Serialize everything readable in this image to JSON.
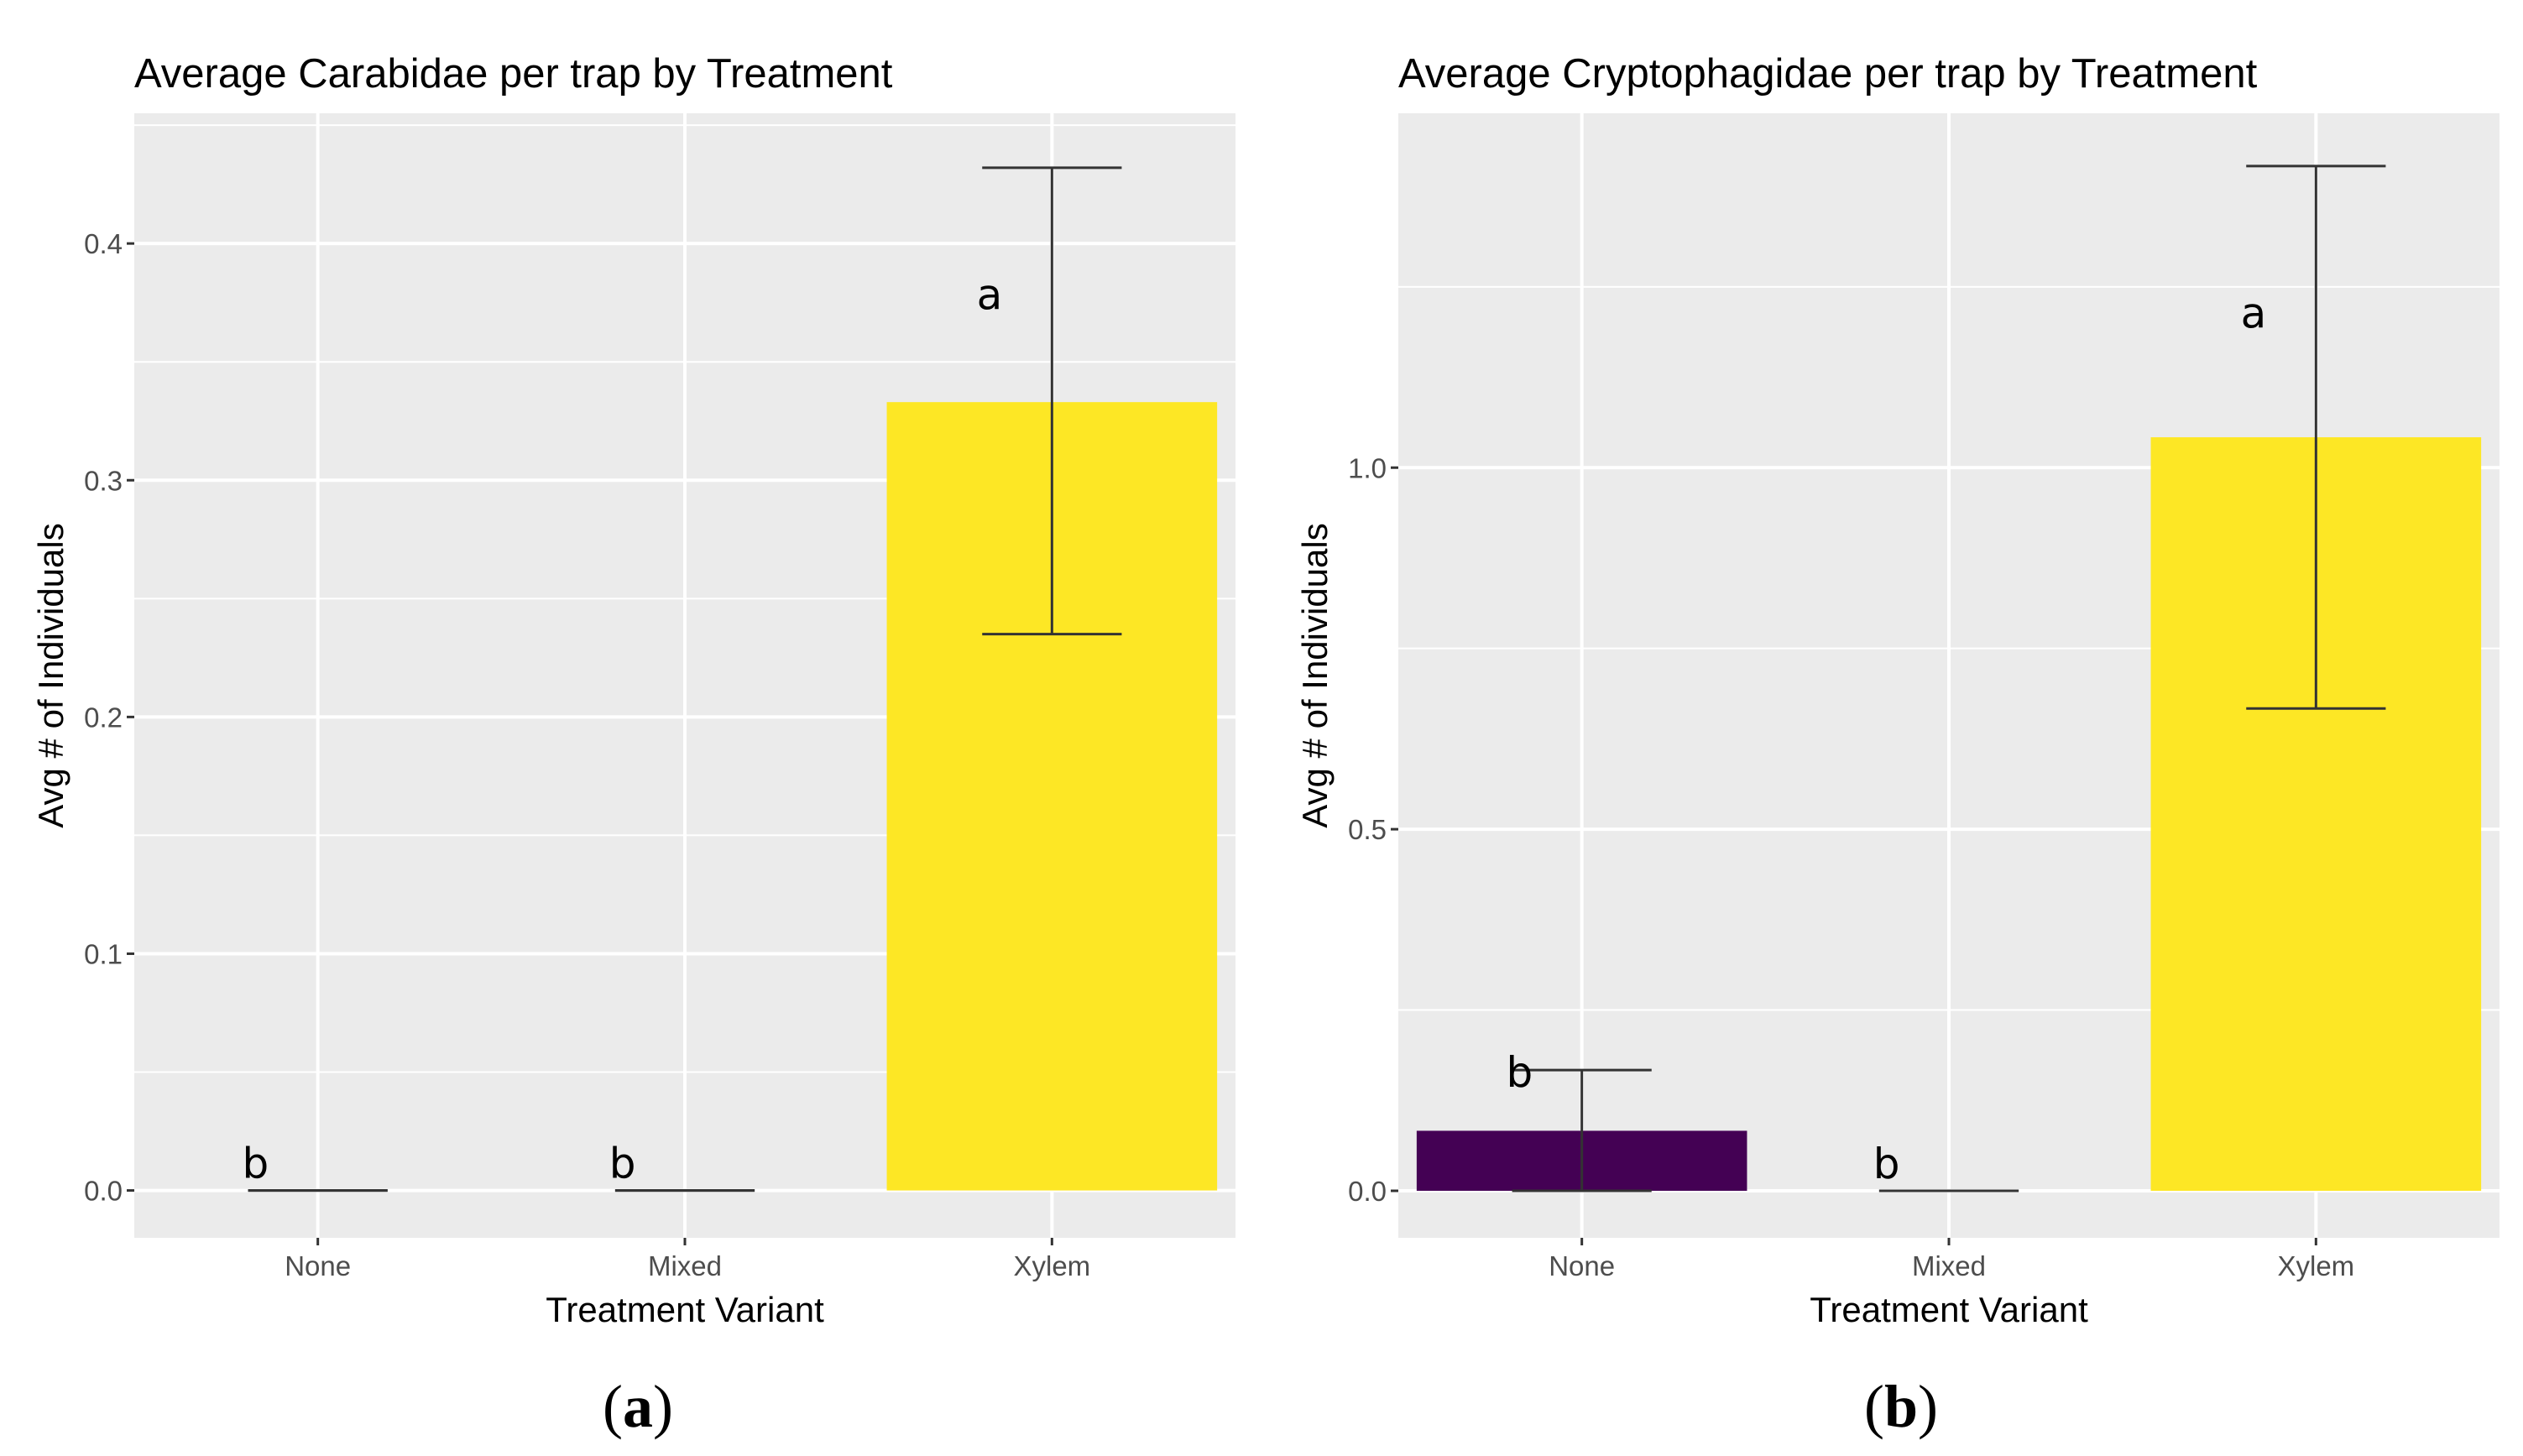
{
  "chart_data": [
    {
      "type": "bar",
      "panel_label": {
        "open": "(",
        "letter": "a",
        "close": ")"
      },
      "title": "Average Carabidae per trap by Treatment",
      "xlabel": "Treatment Variant",
      "ylabel": "Avg # of Individuals",
      "categories": [
        "None",
        "Mixed",
        "Xylem"
      ],
      "values": [
        0.0,
        0.0,
        0.333
      ],
      "error_low": [
        0.0,
        0.0,
        0.235
      ],
      "error_high": [
        0.0,
        0.0,
        0.432
      ],
      "significance": [
        "b",
        "b",
        "a"
      ],
      "bar_colors": [
        "#440154",
        "#21908C",
        "#FDE725"
      ],
      "ylim": [
        -0.02,
        0.455
      ],
      "yticks": [
        0.0,
        0.1,
        0.2,
        0.3,
        0.4
      ],
      "ytick_labels": [
        "0.0",
        "0.1",
        "0.2",
        "0.3",
        "0.4"
      ],
      "grid": true,
      "background": "#EBEBEB"
    },
    {
      "type": "bar",
      "panel_label": {
        "open": "(",
        "letter": "b",
        "close": ")"
      },
      "title": "Average Cryptophagidae per trap by Treatment",
      "xlabel": "Treatment Variant",
      "ylabel": "Avg # of Individuals",
      "categories": [
        "None",
        "Mixed",
        "Xylem"
      ],
      "values": [
        0.083,
        0.0,
        1.042
      ],
      "error_low": [
        0.0,
        0.0,
        0.667
      ],
      "error_high": [
        0.167,
        0.0,
        1.417
      ],
      "significance": [
        "b",
        "b",
        "a"
      ],
      "bar_colors": [
        "#440154",
        "#21908C",
        "#FDE725"
      ],
      "ylim": [
        -0.065,
        1.49
      ],
      "yticks": [
        0.0,
        0.5,
        1.0
      ],
      "ytick_labels": [
        "0.0",
        "0.5",
        "1.0"
      ],
      "grid": true,
      "background": "#EBEBEB"
    }
  ]
}
